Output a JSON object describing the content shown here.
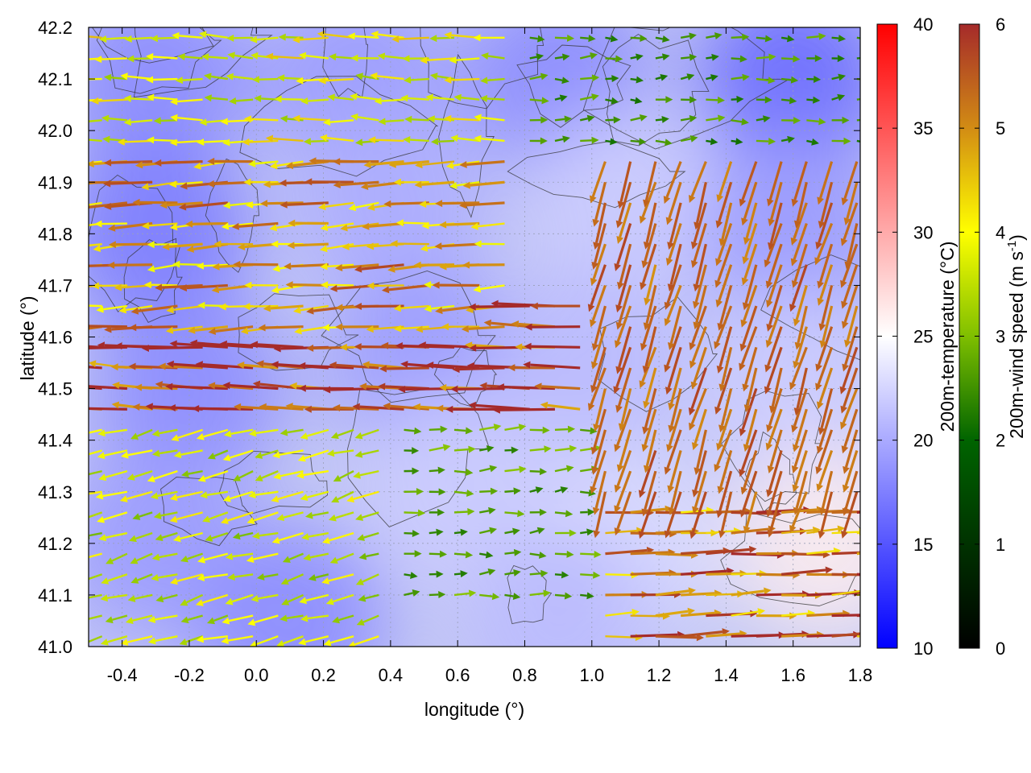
{
  "chart_data": {
    "type": "vector-field",
    "title": "",
    "xlabel": "longitude (°)",
    "ylabel": "latitude (°)",
    "xlim": [
      -0.5,
      1.8
    ],
    "ylim": [
      41.0,
      42.2
    ],
    "x_ticks": [
      "-0.4",
      "-0.2",
      "0.0",
      "0.2",
      "0.4",
      "0.6",
      "0.8",
      "1.0",
      "1.2",
      "1.4",
      "1.6",
      "1.8"
    ],
    "x_tick_values": [
      -0.4,
      -0.2,
      0.0,
      0.2,
      0.4,
      0.6,
      0.8,
      1.0,
      1.2,
      1.4,
      1.6,
      1.8
    ],
    "y_ticks": [
      "41.0",
      "41.1",
      "41.2",
      "41.3",
      "41.4",
      "41.5",
      "41.6",
      "41.7",
      "41.8",
      "41.9",
      "42.0",
      "42.1",
      "42.2"
    ],
    "y_tick_values": [
      41.0,
      41.1,
      41.2,
      41.3,
      41.4,
      41.5,
      41.6,
      41.7,
      41.8,
      41.9,
      42.0,
      42.1,
      42.2
    ],
    "grid": true,
    "temperature_colorbar": {
      "label": "200m-temperature (°C)",
      "range": [
        10,
        40
      ],
      "ticks": [
        "10",
        "15",
        "20",
        "25",
        "30",
        "35",
        "40"
      ],
      "tick_values": [
        10,
        15,
        20,
        25,
        30,
        35,
        40
      ],
      "colors": [
        "#0000ff",
        "#ffffff",
        "#ff0000"
      ]
    },
    "wind_colorbar": {
      "label_main": "200m-wind speed (m s",
      "label_sup": "-1",
      "label_end": ")",
      "range": [
        0,
        6
      ],
      "ticks": [
        "0",
        "1",
        "2",
        "3",
        "4",
        "5",
        "6"
      ],
      "tick_values": [
        0,
        1,
        2,
        3,
        4,
        5,
        6
      ],
      "colors": [
        "#000000",
        "#006400",
        "#7fbf00",
        "#ffff00",
        "#d28c14",
        "#a52a2a"
      ]
    },
    "temperature_field": [
      {
        "lon": -0.3,
        "lat": 42.1,
        "t": 18
      },
      {
        "lon": 0.3,
        "lat": 42.1,
        "t": 19
      },
      {
        "lon": 0.9,
        "lat": 42.1,
        "t": 18
      },
      {
        "lon": 1.6,
        "lat": 42.1,
        "t": 16
      },
      {
        "lon": -0.3,
        "lat": 41.8,
        "t": 17
      },
      {
        "lon": 0.4,
        "lat": 41.85,
        "t": 20
      },
      {
        "lon": 1.1,
        "lat": 41.85,
        "t": 22
      },
      {
        "lon": 1.6,
        "lat": 41.8,
        "t": 19
      },
      {
        "lon": -0.2,
        "lat": 41.5,
        "t": 18
      },
      {
        "lon": 0.5,
        "lat": 41.55,
        "t": 19
      },
      {
        "lon": 1.0,
        "lat": 41.55,
        "t": 21
      },
      {
        "lon": 1.6,
        "lat": 41.5,
        "t": 22
      },
      {
        "lon": -0.3,
        "lat": 41.2,
        "t": 19
      },
      {
        "lon": 0.6,
        "lat": 41.3,
        "t": 22
      },
      {
        "lon": 1.1,
        "lat": 41.2,
        "t": 23
      },
      {
        "lon": 1.7,
        "lat": 41.2,
        "t": 26
      },
      {
        "lon": 0.1,
        "lat": 41.05,
        "t": 18
      },
      {
        "lon": 0.9,
        "lat": 41.05,
        "t": 21
      }
    ],
    "wind_flow_regions": [
      {
        "lat_from": 41.95,
        "lat_to": 42.2,
        "lon_from": -0.5,
        "lon_to": 0.8,
        "u": -3.5,
        "v": 0.1
      },
      {
        "lat_from": 41.6,
        "lat_to": 41.95,
        "lon_from": -0.5,
        "lon_to": 0.8,
        "u": -4.5,
        "v": -0.3
      },
      {
        "lat_from": 41.42,
        "lat_to": 41.68,
        "lon_from": -0.5,
        "lon_to": 1.0,
        "u": -5.8,
        "v": 0.2
      },
      {
        "lat_from": 41.0,
        "lat_to": 41.42,
        "lon_from": -0.5,
        "lon_to": 0.4,
        "u": -3.0,
        "v": -0.8
      },
      {
        "lat_from": 41.1,
        "lat_to": 41.42,
        "lon_from": 0.4,
        "lon_to": 1.0,
        "u": 2.0,
        "v": 0.1
      },
      {
        "lat_from": 41.0,
        "lat_to": 41.3,
        "lon_from": 1.0,
        "lon_to": 1.8,
        "u": 5.0,
        "v": 0.2
      },
      {
        "lat_from": 41.3,
        "lat_to": 41.95,
        "lon_from": 1.0,
        "lon_to": 1.8,
        "u": -1.5,
        "v": -5.0
      },
      {
        "lat_from": 41.95,
        "lat_to": 42.2,
        "lon_from": 0.8,
        "lon_to": 1.8,
        "u": 1.8,
        "v": 0.1
      }
    ]
  }
}
